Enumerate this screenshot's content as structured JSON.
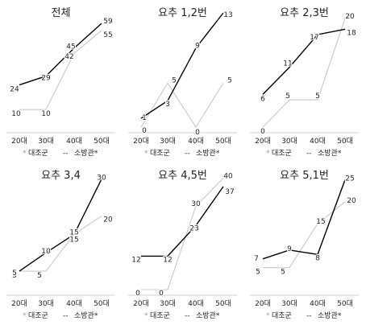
{
  "colors": {
    "control": "#c8c8c8",
    "firefighter": "#000000",
    "text": "#222222",
    "axis": "#d0d0d0"
  },
  "legend": {
    "control": "대조군",
    "firefighter": "소방관*",
    "control_marker": "* ",
    "firefighter_marker": "--"
  },
  "chart_data": [
    {
      "type": "line",
      "title": "전체",
      "categories": [
        "20대",
        "30대",
        "40대",
        "50대"
      ],
      "ylim": [
        0,
        65
      ],
      "series": [
        {
          "name": "대조군",
          "values": [
            10,
            10,
            42,
            55
          ]
        },
        {
          "name": "소방관*",
          "values": [
            24,
            29,
            45,
            59
          ]
        }
      ]
    },
    {
      "type": "line",
      "title": "요추 1,2번",
      "categories": [
        "20대",
        "30대",
        "40대",
        "50대"
      ],
      "ylim": [
        0,
        13
      ],
      "series": [
        {
          "name": "대조군",
          "values": [
            0,
            5,
            0,
            5
          ]
        },
        {
          "name": "소방관*",
          "values": [
            1,
            3,
            9,
            13
          ]
        }
      ]
    },
    {
      "type": "line",
      "title": "요추 2,3번",
      "categories": [
        "20대",
        "30대",
        "40대",
        "50대"
      ],
      "ylim": [
        0,
        21
      ],
      "series": [
        {
          "name": "대조군",
          "values": [
            0,
            5,
            5,
            20
          ]
        },
        {
          "name": "소방관*",
          "values": [
            6,
            11,
            17,
            18
          ]
        }
      ]
    },
    {
      "type": "line",
      "title": "요추 3,4",
      "categories": [
        "20대",
        "30대",
        "40대",
        "50대"
      ],
      "ylim": [
        0,
        31
      ],
      "series": [
        {
          "name": "대조군",
          "values": [
            5,
            5,
            15,
            20
          ]
        },
        {
          "name": "소방관*",
          "values": [
            5,
            10,
            15,
            30
          ]
        }
      ]
    },
    {
      "type": "line",
      "title": "요추 4,5번",
      "categories": [
        "20대",
        "30대",
        "40대",
        "50대"
      ],
      "ylim": [
        0,
        41
      ],
      "series": [
        {
          "name": "대조군",
          "values": [
            0,
            0,
            30,
            40
          ]
        },
        {
          "name": "소방관*",
          "values": [
            12,
            12,
            23,
            37
          ]
        }
      ]
    },
    {
      "type": "line",
      "title": "요추 5,1번",
      "categories": [
        "20대",
        "30대",
        "40대",
        "50대"
      ],
      "ylim": [
        0,
        26
      ],
      "series": [
        {
          "name": "대조군",
          "values": [
            5,
            5,
            15,
            20
          ]
        },
        {
          "name": "소방관*",
          "values": [
            7,
            9,
            8,
            25
          ]
        }
      ]
    }
  ]
}
